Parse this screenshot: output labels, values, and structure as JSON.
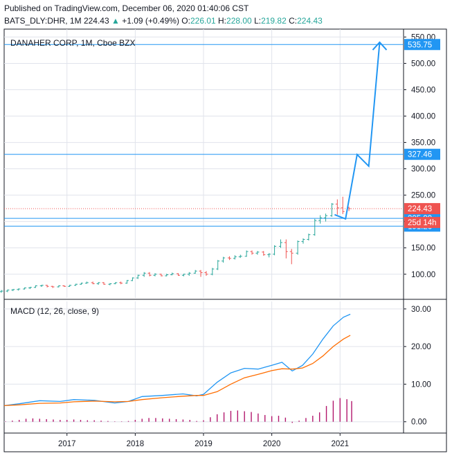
{
  "header": {
    "published": "Published on TradingView.com, December 06, 2020 01:40:06 CST",
    "symbol": "BATS_DLY:DHR, 1M",
    "last": "224.43",
    "change_arrow": "▲",
    "change": "+1.09 (+0.49%)",
    "o_label": "O:",
    "o": "226.01",
    "h_label": "H:",
    "h": "228.00",
    "l_label": "L:",
    "l": "219.82",
    "c_label": "C:",
    "c": "224.43"
  },
  "colors": {
    "up": "#26a69a",
    "down": "#ef5350",
    "line": "#2196f3",
    "macd": "#2196f3",
    "signal": "#ff6d00",
    "hist": "#b2166c",
    "grid": "#e0e3eb"
  },
  "chart_data": [
    {
      "type": "candlestick",
      "title": "DANAHER CORP, 1M, Cboe BZX",
      "y_ticks": [
        "100.00",
        "150.00",
        "200.00",
        "250.00",
        "300.00",
        "350.00",
        "400.00",
        "450.00",
        "500.00",
        "550.00"
      ],
      "x_ticks": [
        "2017",
        "2018",
        "2019",
        "2020",
        "2021"
      ],
      "ylim": [
        55,
        565
      ],
      "xlim": [
        2016.08,
        2021.93
      ],
      "price_label": "224.43",
      "countdown_label": "25d 14h",
      "horizontal_levels": [
        {
          "value": 535.75,
          "label": "535.75"
        },
        {
          "value": 327.46,
          "label": "327.46"
        },
        {
          "value": 205.99,
          "label": "205.99"
        },
        {
          "value": 191.26,
          "label": "191.26"
        }
      ],
      "projection_path": [
        [
          2020.92,
          213
        ],
        [
          2021.08,
          205
        ],
        [
          2021.25,
          327
        ],
        [
          2021.42,
          305
        ],
        [
          2021.58,
          540
        ]
      ],
      "candles": [
        {
          "t": 2016.04,
          "o": 67,
          "h": 70,
          "l": 65,
          "c": 68
        },
        {
          "t": 2016.13,
          "o": 68,
          "h": 71,
          "l": 66,
          "c": 70
        },
        {
          "t": 2016.21,
          "o": 70,
          "h": 72,
          "l": 68,
          "c": 71
        },
        {
          "t": 2016.29,
          "o": 71,
          "h": 73,
          "l": 69,
          "c": 72
        },
        {
          "t": 2016.38,
          "o": 72,
          "h": 75,
          "l": 71,
          "c": 74
        },
        {
          "t": 2016.46,
          "o": 74,
          "h": 76,
          "l": 72,
          "c": 75
        },
        {
          "t": 2016.54,
          "o": 75,
          "h": 79,
          "l": 74,
          "c": 78
        },
        {
          "t": 2016.63,
          "o": 78,
          "h": 80,
          "l": 76,
          "c": 79
        },
        {
          "t": 2016.71,
          "o": 79,
          "h": 80,
          "l": 75,
          "c": 77
        },
        {
          "t": 2016.79,
          "o": 77,
          "h": 78,
          "l": 74,
          "c": 76
        },
        {
          "t": 2016.88,
          "o": 76,
          "h": 79,
          "l": 75,
          "c": 78
        },
        {
          "t": 2016.96,
          "o": 78,
          "h": 79,
          "l": 76,
          "c": 77
        },
        {
          "t": 2017.04,
          "o": 77,
          "h": 80,
          "l": 76,
          "c": 79
        },
        {
          "t": 2017.13,
          "o": 79,
          "h": 82,
          "l": 78,
          "c": 81
        },
        {
          "t": 2017.21,
          "o": 81,
          "h": 84,
          "l": 80,
          "c": 83
        },
        {
          "t": 2017.29,
          "o": 83,
          "h": 86,
          "l": 82,
          "c": 84
        },
        {
          "t": 2017.38,
          "o": 84,
          "h": 86,
          "l": 81,
          "c": 82
        },
        {
          "t": 2017.46,
          "o": 82,
          "h": 85,
          "l": 80,
          "c": 84
        },
        {
          "t": 2017.54,
          "o": 84,
          "h": 85,
          "l": 80,
          "c": 81
        },
        {
          "t": 2017.63,
          "o": 81,
          "h": 83,
          "l": 79,
          "c": 82
        },
        {
          "t": 2017.71,
          "o": 82,
          "h": 85,
          "l": 81,
          "c": 84
        },
        {
          "t": 2017.79,
          "o": 84,
          "h": 86,
          "l": 81,
          "c": 83
        },
        {
          "t": 2017.88,
          "o": 83,
          "h": 89,
          "l": 82,
          "c": 88
        },
        {
          "t": 2017.96,
          "o": 88,
          "h": 94,
          "l": 87,
          "c": 93
        },
        {
          "t": 2018.04,
          "o": 93,
          "h": 99,
          "l": 91,
          "c": 98
        },
        {
          "t": 2018.13,
          "o": 98,
          "h": 104,
          "l": 95,
          "c": 102
        },
        {
          "t": 2018.21,
          "o": 102,
          "h": 104,
          "l": 96,
          "c": 98
        },
        {
          "t": 2018.29,
          "o": 98,
          "h": 102,
          "l": 96,
          "c": 100
        },
        {
          "t": 2018.38,
          "o": 100,
          "h": 101,
          "l": 96,
          "c": 97
        },
        {
          "t": 2018.46,
          "o": 97,
          "h": 101,
          "l": 96,
          "c": 99
        },
        {
          "t": 2018.54,
          "o": 99,
          "h": 103,
          "l": 98,
          "c": 101
        },
        {
          "t": 2018.63,
          "o": 101,
          "h": 102,
          "l": 97,
          "c": 98
        },
        {
          "t": 2018.71,
          "o": 98,
          "h": 101,
          "l": 96,
          "c": 100
        },
        {
          "t": 2018.79,
          "o": 100,
          "h": 104,
          "l": 97,
          "c": 102
        },
        {
          "t": 2018.88,
          "o": 102,
          "h": 108,
          "l": 101,
          "c": 106
        },
        {
          "t": 2018.96,
          "o": 106,
          "h": 108,
          "l": 95,
          "c": 103
        },
        {
          "t": 2019.04,
          "o": 103,
          "h": 106,
          "l": 97,
          "c": 100
        },
        {
          "t": 2019.13,
          "o": 100,
          "h": 112,
          "l": 98,
          "c": 110
        },
        {
          "t": 2019.21,
          "o": 110,
          "h": 127,
          "l": 108,
          "c": 125
        },
        {
          "t": 2019.29,
          "o": 125,
          "h": 133,
          "l": 122,
          "c": 131
        },
        {
          "t": 2019.38,
          "o": 131,
          "h": 134,
          "l": 127,
          "c": 130
        },
        {
          "t": 2019.46,
          "o": 130,
          "h": 136,
          "l": 128,
          "c": 133
        },
        {
          "t": 2019.54,
          "o": 133,
          "h": 137,
          "l": 131,
          "c": 134
        },
        {
          "t": 2019.63,
          "o": 134,
          "h": 145,
          "l": 133,
          "c": 143
        },
        {
          "t": 2019.71,
          "o": 143,
          "h": 145,
          "l": 137,
          "c": 140
        },
        {
          "t": 2019.79,
          "o": 140,
          "h": 144,
          "l": 137,
          "c": 142
        },
        {
          "t": 2019.88,
          "o": 142,
          "h": 144,
          "l": 135,
          "c": 137
        },
        {
          "t": 2019.96,
          "o": 137,
          "h": 140,
          "l": 132,
          "c": 138
        },
        {
          "t": 2020.04,
          "o": 138,
          "h": 155,
          "l": 136,
          "c": 153
        },
        {
          "t": 2020.13,
          "o": 153,
          "h": 166,
          "l": 150,
          "c": 160
        },
        {
          "t": 2020.21,
          "o": 160,
          "h": 166,
          "l": 130,
          "c": 143
        },
        {
          "t": 2020.29,
          "o": 143,
          "h": 148,
          "l": 119,
          "c": 140
        },
        {
          "t": 2020.38,
          "o": 140,
          "h": 164,
          "l": 137,
          "c": 162
        },
        {
          "t": 2020.46,
          "o": 162,
          "h": 168,
          "l": 158,
          "c": 166
        },
        {
          "t": 2020.54,
          "o": 166,
          "h": 177,
          "l": 164,
          "c": 175
        },
        {
          "t": 2020.63,
          "o": 175,
          "h": 205,
          "l": 173,
          "c": 202
        },
        {
          "t": 2020.71,
          "o": 202,
          "h": 212,
          "l": 196,
          "c": 207
        },
        {
          "t": 2020.79,
          "o": 207,
          "h": 215,
          "l": 200,
          "c": 211
        },
        {
          "t": 2020.88,
          "o": 211,
          "h": 235,
          "l": 209,
          "c": 233
        },
        {
          "t": 2020.96,
          "o": 233,
          "h": 242,
          "l": 213,
          "c": 226
        },
        {
          "t": 2021.04,
          "o": 226,
          "h": 247,
          "l": 214,
          "c": 219
        },
        {
          "t": 2021.13,
          "o": 226.01,
          "h": 228,
          "l": 219.82,
          "c": 224.43
        }
      ]
    },
    {
      "type": "line",
      "title": "MACD (12, 26, close, 9)",
      "y_ticks": [
        "0.00",
        "10.00",
        "20.00",
        "30.00"
      ],
      "ylim": [
        -3,
        32
      ],
      "xlim": [
        2016.08,
        2021.93
      ],
      "series": [
        {
          "role": "macd",
          "x": [
            2016.08,
            2016.3,
            2016.6,
            2016.9,
            2017.1,
            2017.4,
            2017.7,
            2017.9,
            2018.1,
            2018.4,
            2018.7,
            2018.9,
            2019.0,
            2019.2,
            2019.4,
            2019.6,
            2019.8,
            2020.0,
            2020.15,
            2020.3,
            2020.45,
            2020.6,
            2020.75,
            2020.9,
            2021.05,
            2021.15
          ],
          "y": [
            4.3,
            4.8,
            5.6,
            5.4,
            5.9,
            5.7,
            5.0,
            5.4,
            6.7,
            7.0,
            7.4,
            6.9,
            7.3,
            10.5,
            13.0,
            14.2,
            14.0,
            15.0,
            15.8,
            13.5,
            15.0,
            18.0,
            22.0,
            25.5,
            27.8,
            28.6
          ]
        },
        {
          "role": "signal",
          "x": [
            2016.08,
            2016.3,
            2016.6,
            2016.9,
            2017.1,
            2017.4,
            2017.7,
            2017.9,
            2018.1,
            2018.4,
            2018.7,
            2018.9,
            2019.0,
            2019.2,
            2019.4,
            2019.6,
            2019.8,
            2020.0,
            2020.15,
            2020.3,
            2020.45,
            2020.6,
            2020.75,
            2020.9,
            2021.05,
            2021.15
          ],
          "y": [
            4.3,
            4.5,
            4.9,
            5.0,
            5.3,
            5.5,
            5.3,
            5.4,
            5.9,
            6.4,
            6.8,
            7.0,
            7.0,
            8.0,
            10.0,
            11.7,
            12.6,
            13.6,
            14.1,
            14.0,
            14.3,
            15.5,
            17.5,
            20.0,
            22.0,
            23.0
          ]
        }
      ],
      "histogram": {
        "x": [
          2016.1,
          2016.2,
          2016.3,
          2016.4,
          2016.5,
          2016.6,
          2016.7,
          2016.8,
          2016.9,
          2017.0,
          2017.1,
          2017.2,
          2017.3,
          2017.4,
          2017.5,
          2017.6,
          2017.7,
          2017.8,
          2017.9,
          2018.0,
          2018.1,
          2018.2,
          2018.3,
          2018.4,
          2018.5,
          2018.6,
          2018.7,
          2018.8,
          2018.9,
          2019.0,
          2019.1,
          2019.2,
          2019.3,
          2019.4,
          2019.5,
          2019.6,
          2019.7,
          2019.8,
          2019.9,
          2020.0,
          2020.1,
          2020.2,
          2020.3,
          2020.4,
          2020.5,
          2020.6,
          2020.7,
          2020.8,
          2020.9,
          2021.0,
          2021.1,
          2021.17
        ],
        "y": [
          0.1,
          0.3,
          0.5,
          0.8,
          0.9,
          0.8,
          0.7,
          0.6,
          0.5,
          0.5,
          0.6,
          0.5,
          0.4,
          0.4,
          0.3,
          0.2,
          0.1,
          0.1,
          0.2,
          0.5,
          0.8,
          1.0,
          1.0,
          0.9,
          0.8,
          0.7,
          0.6,
          0.5,
          0.2,
          0.4,
          1.2,
          2.0,
          2.5,
          2.9,
          3.0,
          2.8,
          2.6,
          2.2,
          1.8,
          1.5,
          1.6,
          1.1,
          -0.3,
          0.3,
          1.0,
          1.6,
          2.5,
          4.2,
          5.6,
          6.3,
          6.0,
          5.5
        ]
      }
    }
  ]
}
